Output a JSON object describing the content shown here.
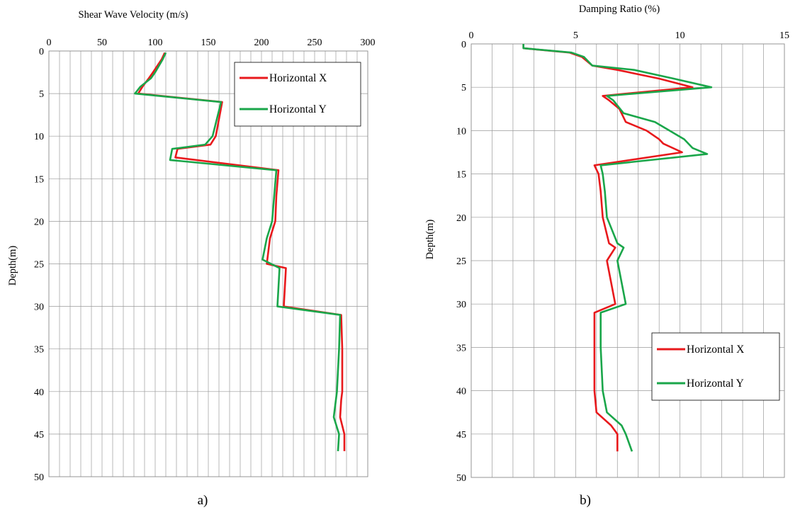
{
  "chart_data": [
    {
      "type": "line",
      "title": "Shear Wave Velocity (m/s)",
      "xlabel": "Shear Wave Velocity (m/s)",
      "ylabel": "Depth(m)",
      "caption": "a)",
      "xlim": [
        0,
        300
      ],
      "ylim": [
        0,
        50
      ],
      "y_inverted": true,
      "x_axis_position": "top",
      "x_ticks": [
        "0",
        "50",
        "100",
        "150",
        "200",
        "250",
        "300"
      ],
      "y_ticks": [
        "0",
        "5",
        "10",
        "15",
        "20",
        "25",
        "30",
        "35",
        "40",
        "45",
        "50"
      ],
      "grid": true,
      "legend": "top-right",
      "colors": {
        "Horizontal X": "#e8191c",
        "Horizontal Y": "#1aa64a"
      },
      "series": [
        {
          "name": "Horizontal X",
          "color": "#e8191c",
          "points": [
            [
              109,
              0.2
            ],
            [
              106,
              1
            ],
            [
              98,
              2.5
            ],
            [
              94,
              3.2
            ],
            [
              88,
              4.2
            ],
            [
              84,
              5
            ],
            [
              163,
              6
            ],
            [
              160,
              8
            ],
            [
              157,
              10
            ],
            [
              152,
              11
            ],
            [
              121,
              11.5
            ],
            [
              119,
              12.5
            ],
            [
              216,
              14
            ],
            [
              214,
              17
            ],
            [
              213,
              20
            ],
            [
              208,
              22
            ],
            [
              205,
              25
            ],
            [
              223,
              25.5
            ],
            [
              221,
              30
            ],
            [
              275,
              31
            ],
            [
              276,
              35
            ],
            [
              276,
              40
            ],
            [
              275,
              41
            ],
            [
              274,
              43
            ],
            [
              278,
              45
            ],
            [
              278,
              47
            ]
          ]
        },
        {
          "name": "Horizontal Y",
          "color": "#1aa64a",
          "points": [
            [
              110,
              0.2
            ],
            [
              107,
              1
            ],
            [
              100,
              2.5
            ],
            [
              96,
              3.2
            ],
            [
              86,
              4.2
            ],
            [
              81,
              5
            ],
            [
              162,
              6
            ],
            [
              158,
              8
            ],
            [
              154,
              10
            ],
            [
              147,
              11
            ],
            [
              116,
              11.5
            ],
            [
              114,
              12.8
            ],
            [
              214,
              14
            ],
            [
              212,
              17
            ],
            [
              210,
              20
            ],
            [
              205,
              22
            ],
            [
              201,
              24.5
            ],
            [
              217,
              25.5
            ],
            [
              215,
              30
            ],
            [
              274,
              31
            ],
            [
              273,
              35
            ],
            [
              271,
              40
            ],
            [
              270,
              41
            ],
            [
              268,
              43
            ],
            [
              273,
              45
            ],
            [
              272,
              47
            ]
          ]
        }
      ]
    },
    {
      "type": "line",
      "title": "Damping Ratio (%)",
      "xlabel": "Damping Ratio (%)",
      "ylabel": "Depth(m)",
      "caption": "b)",
      "xlim": [
        0,
        15
      ],
      "ylim": [
        0,
        50
      ],
      "y_inverted": true,
      "x_axis_position": "top",
      "x_ticks": [
        "0",
        "5",
        "10",
        "15"
      ],
      "y_ticks": [
        "0",
        "5",
        "10",
        "15",
        "20",
        "25",
        "30",
        "35",
        "40",
        "45",
        "50"
      ],
      "grid": true,
      "legend": "bottom-right",
      "colors": {
        "Horizontal X": "#e8191c",
        "Horizontal Y": "#1aa64a"
      },
      "series": [
        {
          "name": "Horizontal X",
          "color": "#e8191c",
          "points": [
            [
              2.5,
              0
            ],
            [
              2.5,
              0.5
            ],
            [
              4.7,
              1
            ],
            [
              5.3,
              1.5
            ],
            [
              5.8,
              2.5
            ],
            [
              7,
              3
            ],
            [
              9,
              4
            ],
            [
              10.6,
              5
            ],
            [
              6.3,
              6
            ],
            [
              6.6,
              6.5
            ],
            [
              7.1,
              7.5
            ],
            [
              7.4,
              9
            ],
            [
              8.4,
              10
            ],
            [
              9,
              11
            ],
            [
              9.2,
              11.5
            ],
            [
              10.1,
              12.5
            ],
            [
              5.9,
              14
            ],
            [
              6.1,
              15
            ],
            [
              6.2,
              17
            ],
            [
              6.3,
              20
            ],
            [
              6.6,
              23
            ],
            [
              6.9,
              23.5
            ],
            [
              6.5,
              25
            ],
            [
              6.9,
              30
            ],
            [
              5.9,
              31
            ],
            [
              5.9,
              35
            ],
            [
              5.9,
              40
            ],
            [
              6,
              42.5
            ],
            [
              6.7,
              44
            ],
            [
              7,
              45
            ],
            [
              7,
              47
            ]
          ]
        },
        {
          "name": "Horizontal Y",
          "color": "#1aa64a",
          "points": [
            [
              2.5,
              0
            ],
            [
              2.5,
              0.5
            ],
            [
              4.8,
              1
            ],
            [
              5.4,
              1.5
            ],
            [
              5.8,
              2.5
            ],
            [
              7.8,
              3
            ],
            [
              9.7,
              4
            ],
            [
              11.5,
              5
            ],
            [
              6.5,
              6
            ],
            [
              6.8,
              6.5
            ],
            [
              7.3,
              8
            ],
            [
              8.8,
              9
            ],
            [
              10.2,
              11
            ],
            [
              10.6,
              12
            ],
            [
              11.3,
              12.7
            ],
            [
              6.2,
              14
            ],
            [
              6.3,
              15
            ],
            [
              6.4,
              17
            ],
            [
              6.5,
              20
            ],
            [
              7,
              23
            ],
            [
              7.3,
              23.5
            ],
            [
              7,
              25
            ],
            [
              7.4,
              30
            ],
            [
              6.2,
              31
            ],
            [
              6.2,
              35
            ],
            [
              6.3,
              40
            ],
            [
              6.5,
              42.5
            ],
            [
              7.2,
              44
            ],
            [
              7.4,
              45
            ],
            [
              7.7,
              47
            ]
          ]
        }
      ]
    }
  ]
}
